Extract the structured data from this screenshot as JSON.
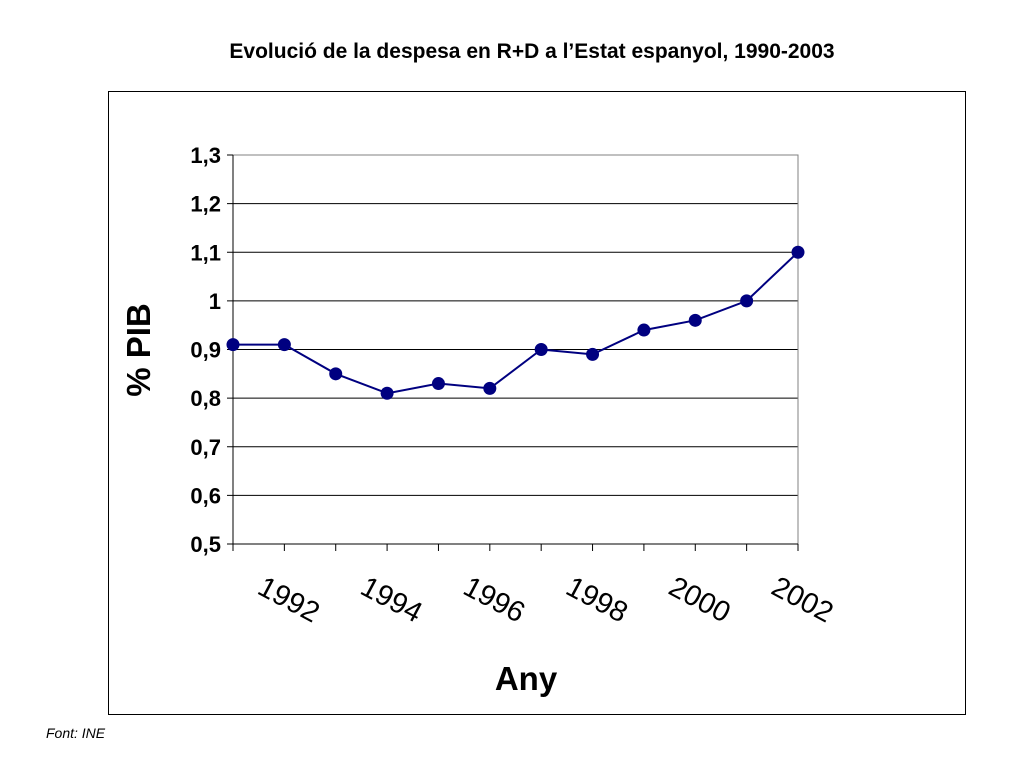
{
  "source_note": "Font: INE",
  "chart_data": {
    "type": "line",
    "title": "Evolució de la despesa en R+D a l’Estat espanyol, 1990-2003",
    "xlabel": "Any",
    "ylabel": "% PIB",
    "x": [
      1991,
      1992,
      1993,
      1994,
      1995,
      1996,
      1997,
      1998,
      1999,
      2000,
      2001,
      2002
    ],
    "x_tick_labels": [
      "1992",
      "1994",
      "1996",
      "1998",
      "2000",
      "2002"
    ],
    "series": [
      {
        "values": [
          0.91,
          0.91,
          0.85,
          0.81,
          0.83,
          0.82,
          0.9,
          0.89,
          0.94,
          0.96,
          1.0,
          1.1
        ]
      }
    ],
    "ylim": [
      0.5,
      1.3
    ],
    "y_tick_labels": [
      "0,5",
      "0,6",
      "0,7",
      "0,8",
      "0,9",
      "1",
      "1,1",
      "1,2",
      "1,3"
    ],
    "grid": true,
    "legend": "none",
    "line_color": "#000080"
  }
}
